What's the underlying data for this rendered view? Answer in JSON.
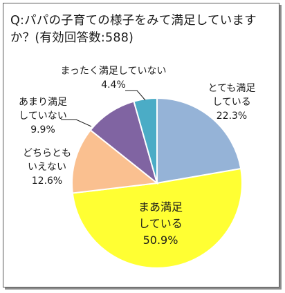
{
  "title": "Q:パパの子育ての様子をみて満足していますか？(有効回答数:588)",
  "colors": {
    "very_satisfied": "#95b3d7",
    "somewhat_satisfied": "#ffff33",
    "neutral": "#fac090",
    "not_very": "#8064a2",
    "not_at_all": "#4bacc6",
    "border": "#555555",
    "text": "#1a1a1a"
  },
  "chart_data": {
    "type": "pie",
    "title": "Q:パパの子育ての様子をみて満足していますか？(有効回答数:588)",
    "n": 588,
    "start": "12 o'clock",
    "direction": "clockwise",
    "slices": [
      {
        "key": "very_satisfied",
        "label_lines": [
          "とても満足",
          "している"
        ],
        "value_text": "22.3%",
        "value": 22.3
      },
      {
        "key": "somewhat_satisfied",
        "label_lines": [
          "まあ満足",
          "している"
        ],
        "value_text": "50.9%",
        "value": 50.9
      },
      {
        "key": "neutral",
        "label_lines": [
          "どちらとも",
          "いえない"
        ],
        "value_text": "12.6%",
        "value": 12.6
      },
      {
        "key": "not_very",
        "label_lines": [
          "あまり満足",
          "していない"
        ],
        "value_text": "9.9%",
        "value": 9.9
      },
      {
        "key": "not_at_all",
        "label_lines": [
          "まったく満足していない"
        ],
        "value_text": "4.4%",
        "value": 4.4
      }
    ]
  }
}
